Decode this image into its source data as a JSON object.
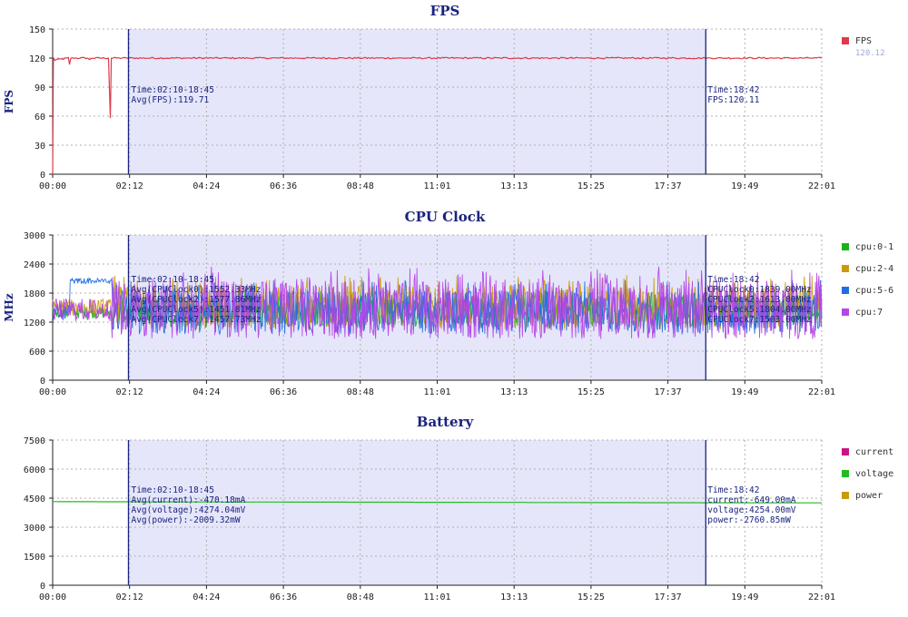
{
  "colors": {
    "axis": "#222222",
    "grid": "#b0b0b0",
    "selection": "#e6e6fa",
    "marker": "#1a237e",
    "fps": "#e03a4a",
    "cpu01": "#19b319",
    "cpu24": "#c99a0e",
    "cpu56": "#1f6fe0",
    "cpu7": "#b445e6",
    "current": "#c71585",
    "voltage": "#22bb22",
    "power": "#c99a0e"
  },
  "chart_data": [
    {
      "type": "line",
      "title": "FPS",
      "ylabel": "FPS",
      "xlabel": "",
      "x_ticks": [
        "00:00",
        "02:12",
        "04:24",
        "06:36",
        "08:48",
        "11:01",
        "13:13",
        "15:25",
        "17:37",
        "19:49",
        "22:01"
      ],
      "x_range_min": [
        0,
        22.02
      ],
      "ylim": [
        0,
        150
      ],
      "y_ticks": [
        "150",
        "120",
        "90",
        "60",
        "30",
        "0"
      ],
      "grid": true,
      "legend_position": "right",
      "selection_min": [
        2.17,
        18.7
      ],
      "series": [
        {
          "name": "FPS",
          "color_key": "fps",
          "legend_value": "120.12",
          "points": [
            [
              0,
              0
            ],
            [
              0.02,
              120
            ],
            [
              0.06,
              118
            ],
            [
              0.45,
              120
            ],
            [
              0.48,
              113
            ],
            [
              0.52,
              120
            ],
            [
              1.0,
              120
            ],
            [
              1.05,
              118
            ],
            [
              1.12,
              120
            ],
            [
              1.6,
              120
            ],
            [
              1.65,
              58
            ],
            [
              1.68,
              120
            ],
            [
              2.5,
              120
            ],
            [
              5,
              120
            ],
            [
              8,
              120
            ],
            [
              11,
              120
            ],
            [
              14,
              120
            ],
            [
              17,
              120
            ],
            [
              18.7,
              120
            ],
            [
              20,
              120
            ],
            [
              22.02,
              120
            ]
          ]
        }
      ],
      "annotations_left": [
        "Time:02:10-18:45",
        "Avg(FPS):119.71"
      ],
      "annotations_right": [
        "Time:18:42",
        "FPS:120.11"
      ]
    },
    {
      "type": "line",
      "title": "CPU Clock",
      "ylabel": "MHz",
      "xlabel": "",
      "x_ticks": [
        "00:00",
        "02:12",
        "04:24",
        "06:36",
        "08:48",
        "11:01",
        "13:13",
        "15:25",
        "17:37",
        "19:49",
        "22:01"
      ],
      "x_range_min": [
        0,
        22.02
      ],
      "ylim": [
        0,
        3000
      ],
      "y_ticks": [
        "3000",
        "2400",
        "1800",
        "1200",
        "600",
        "0"
      ],
      "grid": true,
      "legend_position": "right",
      "selection_min": [
        2.17,
        18.7
      ],
      "series": [
        {
          "name": "cpu:0-1",
          "color_key": "cpu01",
          "base": 1400,
          "amp": 300
        },
        {
          "name": "cpu:2-4",
          "color_key": "cpu24",
          "base": 1500,
          "amp": 450
        },
        {
          "name": "cpu:5-6",
          "color_key": "cpu56",
          "base": 1400,
          "amp": 450
        },
        {
          "name": "cpu:7",
          "color_key": "cpu7",
          "base": 1450,
          "amp": 600
        }
      ],
      "annotations_left": [
        "Time:02:10-18:45",
        "Avg(CPUClock0):1552.33MHz",
        "Avg(CPUClock2):1577.86MHz",
        "Avg(CPUClock5):1451.81MHz",
        "Avg(CPUClock7):1457.73MHz"
      ],
      "annotations_right": [
        "Time:18:42",
        "CPUClock0:1839.00MHz",
        "CPUClock2:1613.00MHz",
        "CPUClock5:1804.00MHz",
        "CPUClock7:1503.00MHz"
      ]
    },
    {
      "type": "line",
      "title": "Battery",
      "ylabel": "",
      "xlabel": "",
      "x_ticks": [
        "00:00",
        "02:12",
        "04:24",
        "06:36",
        "08:48",
        "11:01",
        "13:13",
        "15:25",
        "17:37",
        "19:49",
        "22:01"
      ],
      "x_range_min": [
        0,
        22.02
      ],
      "ylim": [
        0,
        7500
      ],
      "y_ticks": [
        "7500",
        "6000",
        "4500",
        "3000",
        "1500",
        "0"
      ],
      "grid": true,
      "legend_position": "right",
      "selection_min": [
        2.17,
        18.7
      ],
      "series": [
        {
          "name": "current",
          "color_key": "current",
          "points": []
        },
        {
          "name": "voltage",
          "color_key": "voltage",
          "points": [
            [
              0,
              4320
            ],
            [
              5,
              4300
            ],
            [
              11,
              4285
            ],
            [
              16,
              4270
            ],
            [
              22.02,
              4254
            ]
          ]
        },
        {
          "name": "power",
          "color_key": "power",
          "points": []
        }
      ],
      "annotations_left": [
        "Time:02:10-18:45",
        "Avg(current):-470.18mA",
        "Avg(voltage):4274.04mV",
        "Avg(power):-2009.32mW"
      ],
      "annotations_right": [
        "Time:18:42",
        "current:-649.00mA",
        "voltage:4254.00mV",
        "power:-2760.85mW"
      ]
    }
  ]
}
